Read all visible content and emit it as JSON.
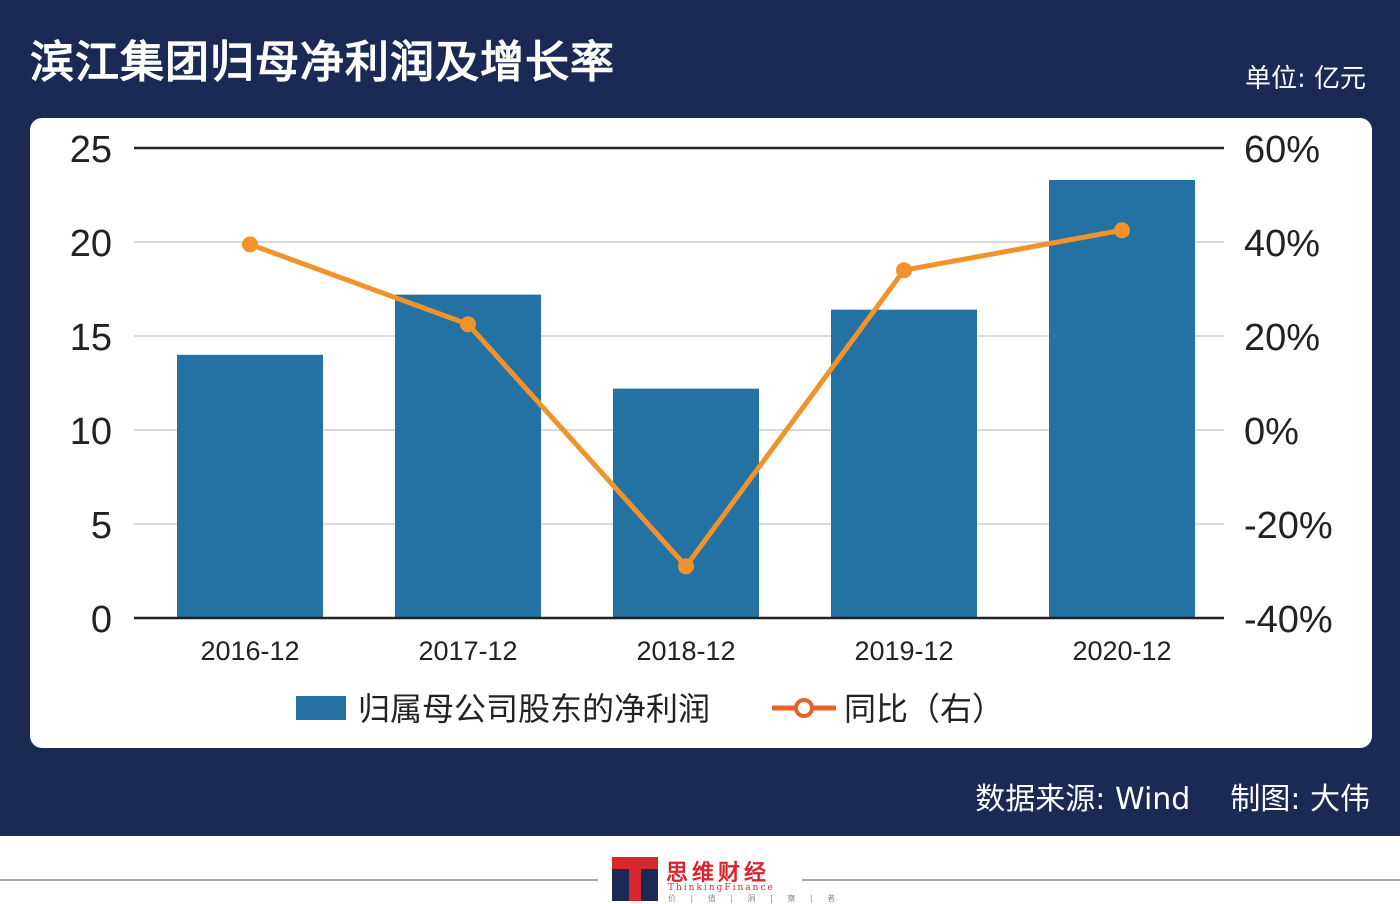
{
  "header": {
    "title": "滨江集团归母净利润及增长率",
    "unit": "单位: 亿元"
  },
  "footer": {
    "source": "数据来源: Wind",
    "author": "制图: 大伟"
  },
  "logo": {
    "name": "思维财经",
    "english": "ThinkingFinance",
    "motto": "价 | 值 | 洞 | 察 | 者"
  },
  "colors": {
    "frame": "#1b2a55",
    "bar": "#2471a3",
    "line": "#f0932b",
    "legend_line": "#e8632a",
    "grid": "#d9d9d9",
    "brand_red": "#d8262e"
  },
  "chart_data": {
    "type": "bar",
    "categories": [
      "2016-12",
      "2017-12",
      "2018-12",
      "2019-12",
      "2020-12"
    ],
    "series": [
      {
        "name": "归属母公司股东的净利润",
        "type": "bar",
        "axis": "left",
        "values": [
          14.0,
          17.2,
          12.2,
          16.4,
          23.3
        ]
      },
      {
        "name": "同比（右）",
        "type": "line",
        "axis": "right",
        "values": [
          39.5,
          22.5,
          -29.0,
          34.0,
          42.5
        ]
      }
    ],
    "y_left": {
      "lim": [
        0,
        25
      ],
      "ticks": [
        "0",
        "5",
        "10",
        "15",
        "20",
        "25"
      ]
    },
    "y_right": {
      "lim": [
        -40,
        60
      ],
      "ticks": [
        "-40%",
        "-20%",
        "0%",
        "20%",
        "40%",
        "60%"
      ]
    },
    "grid": true,
    "legend": "bottom"
  }
}
